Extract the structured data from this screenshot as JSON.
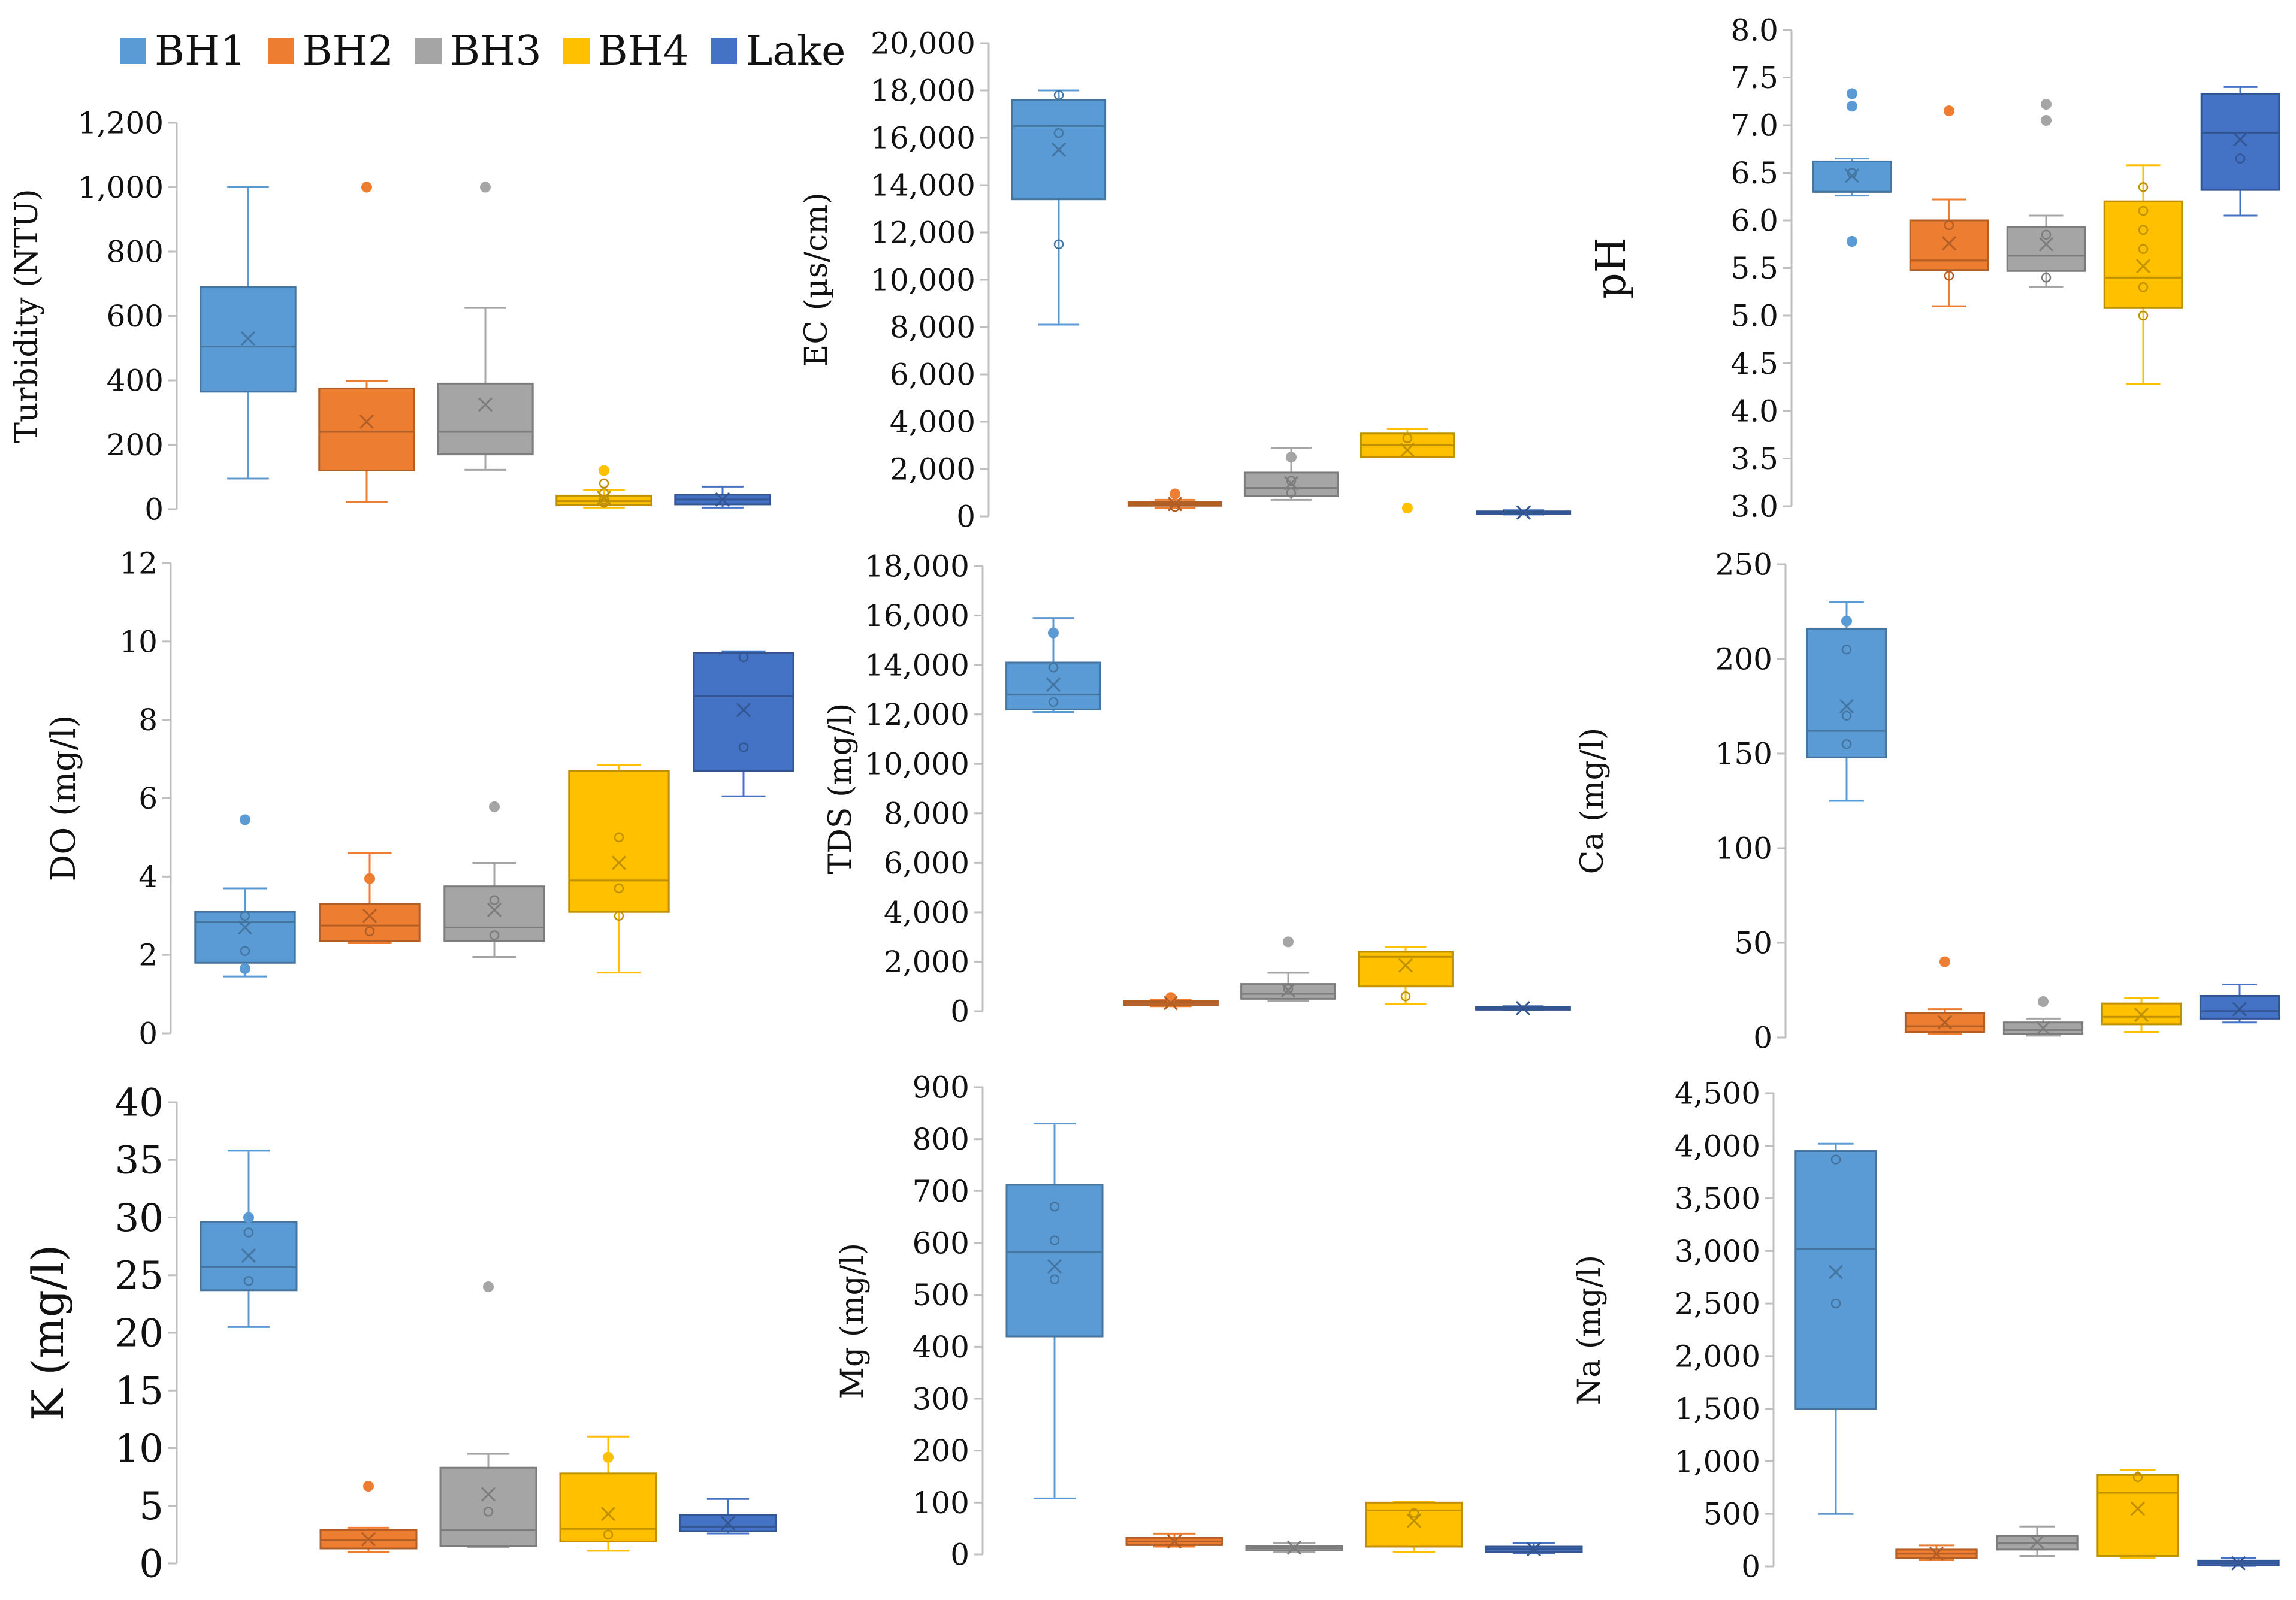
{
  "legend": [
    {
      "name": "BH1",
      "color": "#5B9BD5"
    },
    {
      "name": "BH2",
      "color": "#ED7D31"
    },
    {
      "name": "BH3",
      "color": "#A5A5A5"
    },
    {
      "name": "BH4",
      "color": "#FFC000"
    },
    {
      "name": "Lake",
      "color": "#4472C4"
    }
  ],
  "chart_data": [
    {
      "type": "box",
      "ylabel": "Turbidity (NTU)",
      "ylim": [
        0,
        1200
      ],
      "ticks": [
        "0",
        "200",
        "400",
        "600",
        "800",
        "1,000",
        "1,200"
      ],
      "series": [
        {
          "name": "BH1",
          "q1": 365,
          "median": 505,
          "q3": 690,
          "min": 95,
          "max": 1000,
          "mean": 530,
          "points": [],
          "outliers": []
        },
        {
          "name": "BH2",
          "q1": 120,
          "median": 240,
          "q3": 375,
          "min": 22,
          "max": 398,
          "mean": 272,
          "points": [],
          "outliers": [
            1000
          ]
        },
        {
          "name": "BH3",
          "q1": 170,
          "median": 240,
          "q3": 390,
          "min": 122,
          "max": 625,
          "mean": 325,
          "points": [],
          "outliers": [
            1000
          ]
        },
        {
          "name": "BH4",
          "q1": 12,
          "median": 25,
          "q3": 42,
          "min": 5,
          "max": 60,
          "mean": 35,
          "points": [
            20,
            30,
            50,
            80
          ],
          "outliers": [
            120
          ]
        },
        {
          "name": "Lake",
          "q1": 15,
          "median": 30,
          "q3": 45,
          "min": 5,
          "max": 70,
          "mean": 30,
          "points": [],
          "outliers": []
        }
      ]
    },
    {
      "type": "box",
      "ylabel": "EC (µs/cm)",
      "ylim": [
        0,
        20000
      ],
      "ticks": [
        "0",
        "2,000",
        "4,000",
        "6,000",
        "8,000",
        "10,000",
        "12,000",
        "14,000",
        "16,000",
        "18,000",
        "20,000"
      ],
      "series": [
        {
          "name": "BH1",
          "q1": 13400,
          "median": 16500,
          "q3": 17600,
          "min": 8100,
          "max": 18000,
          "mean": 15500,
          "points": [
            11500,
            16200,
            17800
          ],
          "outliers": []
        },
        {
          "name": "BH2",
          "q1": 450,
          "median": 520,
          "q3": 600,
          "min": 350,
          "max": 700,
          "mean": 520,
          "points": [
            400
          ],
          "outliers": [
            950
          ]
        },
        {
          "name": "BH3",
          "q1": 850,
          "median": 1200,
          "q3": 1850,
          "min": 700,
          "max": 2900,
          "mean": 1400,
          "points": [
            1000,
            1500
          ],
          "outliers": [
            2500
          ]
        },
        {
          "name": "BH4",
          "q1": 2500,
          "median": 3000,
          "q3": 3500,
          "min": 2500,
          "max": 3700,
          "mean": 2800,
          "points": [
            3300
          ],
          "outliers": [
            350
          ]
        },
        {
          "name": "Lake",
          "q1": 120,
          "median": 160,
          "q3": 210,
          "min": 80,
          "max": 260,
          "mean": 160,
          "points": [],
          "outliers": []
        }
      ]
    },
    {
      "type": "box",
      "ylabel": "pH",
      "ylim": [
        3.0,
        8.0
      ],
      "ticks": [
        "3.0",
        "3.5",
        "4.0",
        "4.5",
        "5.0",
        "5.5",
        "6.0",
        "6.5",
        "7.0",
        "7.5",
        "8.0"
      ],
      "series": [
        {
          "name": "BH1",
          "q1": 6.3,
          "median": 6.3,
          "q3": 6.62,
          "min": 6.26,
          "max": 6.65,
          "mean": 6.47,
          "points": [
            6.5
          ],
          "outliers": [
            5.78,
            7.2,
            7.33
          ]
        },
        {
          "name": "BH2",
          "q1": 5.48,
          "median": 5.58,
          "q3": 6.0,
          "min": 5.1,
          "max": 6.22,
          "mean": 5.76,
          "points": [
            5.42,
            5.95
          ],
          "outliers": [
            7.15
          ]
        },
        {
          "name": "BH3",
          "q1": 5.47,
          "median": 5.63,
          "q3": 5.93,
          "min": 5.3,
          "max": 6.05,
          "mean": 5.75,
          "points": [
            5.4,
            5.85
          ],
          "outliers": [
            7.05,
            7.22
          ]
        },
        {
          "name": "BH4",
          "q1": 5.08,
          "median": 5.4,
          "q3": 6.2,
          "min": 4.28,
          "max": 6.58,
          "mean": 5.52,
          "points": [
            5.0,
            5.3,
            5.7,
            5.9,
            6.1,
            6.35
          ],
          "outliers": []
        },
        {
          "name": "Lake",
          "q1": 6.32,
          "median": 6.92,
          "q3": 7.33,
          "min": 6.05,
          "max": 7.4,
          "mean": 6.85,
          "points": [
            6.65
          ],
          "outliers": []
        }
      ]
    },
    {
      "type": "box",
      "ylabel": "DO (mg/l)",
      "ylim": [
        0,
        12
      ],
      "ticks": [
        "0",
        "2",
        "4",
        "6",
        "8",
        "10",
        "12"
      ],
      "series": [
        {
          "name": "BH1",
          "q1": 1.8,
          "median": 2.85,
          "q3": 3.1,
          "min": 1.45,
          "max": 3.7,
          "mean": 2.7,
          "points": [
            2.1,
            3.0
          ],
          "outliers": [
            5.45,
            1.65
          ]
        },
        {
          "name": "BH2",
          "q1": 2.35,
          "median": 2.75,
          "q3": 3.3,
          "min": 2.3,
          "max": 4.6,
          "mean": 3.0,
          "points": [
            2.6
          ],
          "outliers": [
            3.95
          ]
        },
        {
          "name": "BH3",
          "q1": 2.35,
          "median": 2.7,
          "q3": 3.75,
          "min": 1.95,
          "max": 4.35,
          "mean": 3.15,
          "points": [
            2.5,
            3.4
          ],
          "outliers": [
            5.78
          ]
        },
        {
          "name": "BH4",
          "q1": 3.1,
          "median": 3.9,
          "q3": 6.7,
          "min": 1.55,
          "max": 6.85,
          "mean": 4.35,
          "points": [
            3.0,
            3.7,
            5.0
          ],
          "outliers": []
        },
        {
          "name": "Lake",
          "q1": 6.7,
          "median": 8.6,
          "q3": 9.7,
          "min": 6.05,
          "max": 9.75,
          "mean": 8.25,
          "points": [
            7.3,
            9.6
          ],
          "outliers": []
        }
      ]
    },
    {
      "type": "box",
      "ylabel": "TDS (mg/l)",
      "ylim": [
        0,
        18000
      ],
      "ticks": [
        "0",
        "2,000",
        "4,000",
        "6,000",
        "8,000",
        "10,000",
        "12,000",
        "14,000",
        "16,000",
        "18,000"
      ],
      "series": [
        {
          "name": "BH1",
          "q1": 12200,
          "median": 12800,
          "q3": 14100,
          "min": 12100,
          "max": 15900,
          "mean": 13200,
          "points": [
            12500,
            13900
          ],
          "outliers": [
            15300
          ]
        },
        {
          "name": "BH2",
          "q1": 250,
          "median": 330,
          "q3": 400,
          "min": 200,
          "max": 450,
          "mean": 330,
          "points": [],
          "outliers": [
            550
          ]
        },
        {
          "name": "BH3",
          "q1": 500,
          "median": 700,
          "q3": 1100,
          "min": 400,
          "max": 1550,
          "mean": 850,
          "points": [
            900
          ],
          "outliers": [
            2800
          ]
        },
        {
          "name": "BH4",
          "q1": 1000,
          "median": 2200,
          "q3": 2400,
          "min": 300,
          "max": 2600,
          "mean": 1850,
          "points": [
            600
          ],
          "outliers": []
        },
        {
          "name": "Lake",
          "q1": 80,
          "median": 120,
          "q3": 160,
          "min": 50,
          "max": 200,
          "mean": 120,
          "points": [],
          "outliers": []
        }
      ]
    },
    {
      "type": "box",
      "ylabel": "Ca (mg/l)",
      "ylim": [
        0,
        250
      ],
      "ticks": [
        "0",
        "50",
        "100",
        "150",
        "200",
        "250"
      ],
      "series": [
        {
          "name": "BH1",
          "q1": 148,
          "median": 162,
          "q3": 216,
          "min": 125,
          "max": 230,
          "mean": 175,
          "points": [
            155,
            170,
            205
          ],
          "outliers": [
            220
          ]
        },
        {
          "name": "BH2",
          "q1": 3,
          "median": 6,
          "q3": 13,
          "min": 2,
          "max": 15,
          "mean": 8,
          "points": [],
          "outliers": [
            40
          ]
        },
        {
          "name": "BH3",
          "q1": 2,
          "median": 4,
          "q3": 8,
          "min": 1,
          "max": 10,
          "mean": 5,
          "points": [],
          "outliers": [
            19
          ]
        },
        {
          "name": "BH4",
          "q1": 7,
          "median": 11,
          "q3": 18,
          "min": 3,
          "max": 21,
          "mean": 12,
          "points": [],
          "outliers": []
        },
        {
          "name": "Lake",
          "q1": 10,
          "median": 14,
          "q3": 22,
          "min": 8,
          "max": 28,
          "mean": 15,
          "points": [],
          "outliers": []
        }
      ]
    },
    {
      "type": "box",
      "ylabel": "K (mg/l)",
      "ylim": [
        0,
        40
      ],
      "ticks": [
        "0",
        "5",
        "10",
        "15",
        "20",
        "25",
        "30",
        "35",
        "40"
      ],
      "series": [
        {
          "name": "BH1",
          "q1": 23.7,
          "median": 25.7,
          "q3": 29.6,
          "min": 20.5,
          "max": 35.8,
          "mean": 26.7,
          "points": [
            24.5,
            28.7
          ],
          "outliers": [
            30
          ]
        },
        {
          "name": "BH2",
          "q1": 1.3,
          "median": 2.0,
          "q3": 2.9,
          "min": 1.0,
          "max": 3.1,
          "mean": 2.1,
          "points": [],
          "outliers": [
            6.7
          ]
        },
        {
          "name": "BH3",
          "q1": 1.5,
          "median": 2.9,
          "q3": 8.3,
          "min": 1.4,
          "max": 9.5,
          "mean": 6.0,
          "points": [
            4.5
          ],
          "outliers": [
            24
          ]
        },
        {
          "name": "BH4",
          "q1": 1.9,
          "median": 3.0,
          "q3": 7.8,
          "min": 1.1,
          "max": 11.0,
          "mean": 4.3,
          "points": [
            2.5
          ],
          "outliers": [
            9.2
          ]
        },
        {
          "name": "Lake",
          "q1": 2.8,
          "median": 3.2,
          "q3": 4.2,
          "min": 2.6,
          "max": 5.6,
          "mean": 3.5,
          "points": [],
          "outliers": []
        }
      ]
    },
    {
      "type": "box",
      "ylabel": "Mg (mg/l)",
      "ylim": [
        0,
        900
      ],
      "ticks": [
        "0",
        "100",
        "200",
        "300",
        "400",
        "500",
        "600",
        "700",
        "800",
        "900"
      ],
      "series": [
        {
          "name": "BH1",
          "q1": 420,
          "median": 582,
          "q3": 712,
          "min": 108,
          "max": 830,
          "mean": 555,
          "points": [
            530,
            605,
            670
          ],
          "outliers": []
        },
        {
          "name": "BH2",
          "q1": 18,
          "median": 25,
          "q3": 32,
          "min": 15,
          "max": 40,
          "mean": 25,
          "points": [],
          "outliers": []
        },
        {
          "name": "BH3",
          "q1": 8,
          "median": 12,
          "q3": 16,
          "min": 5,
          "max": 22,
          "mean": 13,
          "points": [],
          "outliers": []
        },
        {
          "name": "BH4",
          "q1": 15,
          "median": 85,
          "q3": 100,
          "min": 5,
          "max": 102,
          "mean": 65,
          "points": [
            80
          ],
          "outliers": []
        },
        {
          "name": "Lake",
          "q1": 5,
          "median": 10,
          "q3": 15,
          "min": 2,
          "max": 22,
          "mean": 10,
          "points": [],
          "outliers": []
        }
      ]
    },
    {
      "type": "box",
      "ylabel": "Na (mg/l)",
      "ylim": [
        0,
        4500
      ],
      "ticks": [
        "0",
        "500",
        "1,000",
        "1,500",
        "2,000",
        "2,500",
        "3,000",
        "3,500",
        "4,000",
        "4,500"
      ],
      "series": [
        {
          "name": "BH1",
          "q1": 1500,
          "median": 3020,
          "q3": 3950,
          "min": 500,
          "max": 4020,
          "mean": 2800,
          "points": [
            2500,
            3870
          ],
          "outliers": []
        },
        {
          "name": "BH2",
          "q1": 80,
          "median": 120,
          "q3": 160,
          "min": 60,
          "max": 200,
          "mean": 120,
          "points": [],
          "outliers": []
        },
        {
          "name": "BH3",
          "q1": 160,
          "median": 220,
          "q3": 290,
          "min": 100,
          "max": 380,
          "mean": 230,
          "points": [],
          "outliers": []
        },
        {
          "name": "BH4",
          "q1": 100,
          "median": 700,
          "q3": 870,
          "min": 80,
          "max": 920,
          "mean": 550,
          "points": [
            850
          ],
          "outliers": []
        },
        {
          "name": "Lake",
          "q1": 10,
          "median": 30,
          "q3": 55,
          "min": 5,
          "max": 80,
          "mean": 30,
          "points": [],
          "outliers": []
        }
      ]
    }
  ]
}
